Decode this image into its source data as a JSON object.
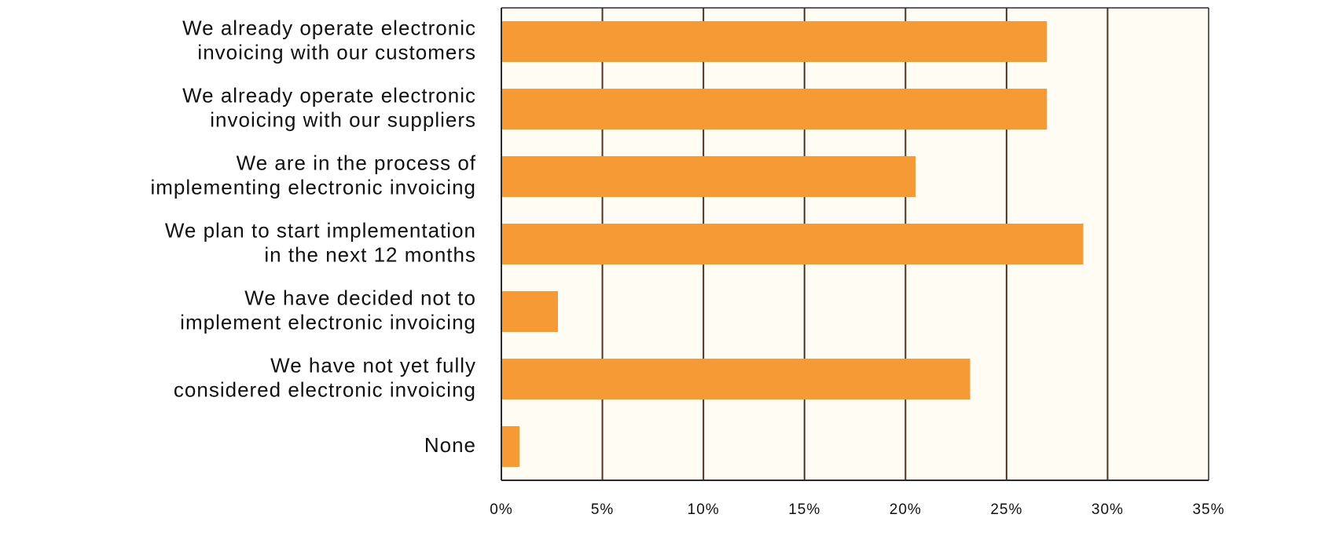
{
  "chart_data": {
    "type": "bar",
    "orientation": "horizontal",
    "title": "",
    "xlabel": "",
    "ylabel": "",
    "categories": [
      [
        "We already operate electronic",
        "invoicing with our customers"
      ],
      [
        "We already operate electronic",
        "invoicing with our suppliers"
      ],
      [
        "We are in the process of",
        "implementing electronic invoicing"
      ],
      [
        "We plan to start implementation",
        "in the next 12 months"
      ],
      [
        "We have decided not to",
        "implement electronic invoicing"
      ],
      [
        "We have not yet fully",
        "considered electronic invoicing"
      ],
      [
        "None"
      ]
    ],
    "values": [
      27,
      27,
      20.5,
      28.8,
      2.8,
      23.2,
      0.9
    ],
    "xlim": [
      0,
      35
    ],
    "xticks": [
      0,
      5,
      10,
      15,
      20,
      25,
      30,
      35
    ],
    "xtick_labels": [
      "0%",
      "5%",
      "10%",
      "15%",
      "20%",
      "25%",
      "30%",
      "35%"
    ],
    "grid": "vertical",
    "legend": "none",
    "colors": {
      "bar": "#F59A35",
      "plot_background": "#FEFCF3",
      "grid": "#4A3524",
      "axis": "#2B2B2B",
      "text": "#111111"
    }
  }
}
